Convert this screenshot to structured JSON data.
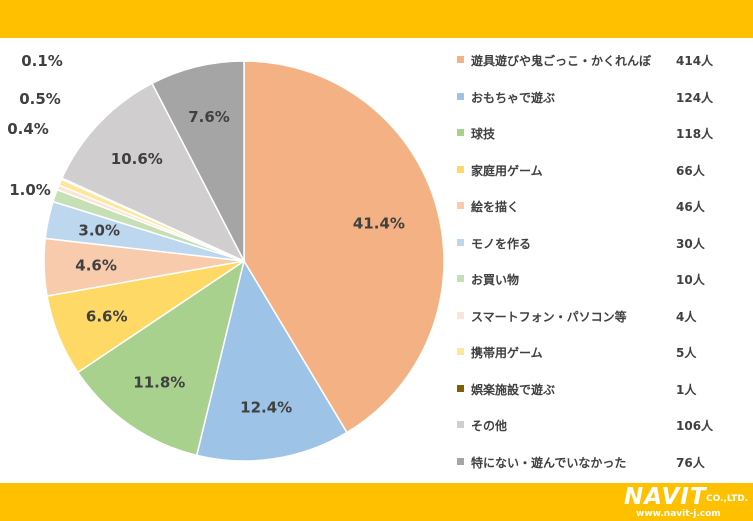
{
  "chart_data": {
    "type": "pie",
    "slices": [
      {
        "label": "遊具遊びや鬼ごっこ・かくれんぼ",
        "count": "414人",
        "value": 41.4,
        "pct_label": "41.4%",
        "color": "#F4B183"
      },
      {
        "label": "おもちゃで遊ぶ",
        "count": "124人",
        "value": 12.4,
        "pct_label": "12.4%",
        "color": "#9DC3E6"
      },
      {
        "label": "球技",
        "count": "118人",
        "value": 11.8,
        "pct_label": "11.8%",
        "color": "#A9D18E"
      },
      {
        "label": "家庭用ゲーム",
        "count": "66人",
        "value": 6.6,
        "pct_label": "6.6%",
        "color": "#FFD966"
      },
      {
        "label": "絵を描く",
        "count": "46人",
        "value": 4.6,
        "pct_label": "4.6%",
        "color": "#F8CBAD"
      },
      {
        "label": "モノを作る",
        "count": "30人",
        "value": 3.0,
        "pct_label": "3.0%",
        "color": "#BDD7EE"
      },
      {
        "label": "お買い物",
        "count": "10人",
        "value": 1.0,
        "pct_label": "1.0%",
        "color": "#C5E0B4"
      },
      {
        "label": "スマートフォン・パソコン等",
        "count": "4人",
        "value": 0.4,
        "pct_label": "0.4%",
        "color": "#FBE5D6"
      },
      {
        "label": "携帯用ゲーム",
        "count": "5人",
        "value": 0.5,
        "pct_label": "0.5%",
        "color": "#FFE699"
      },
      {
        "label": "娯楽施設で遊ぶ",
        "count": "1人",
        "value": 0.1,
        "pct_label": "0.1%",
        "color": "#7F6000"
      },
      {
        "label": "その他",
        "count": "106人",
        "value": 10.6,
        "pct_label": "10.6%",
        "color": "#D0CECE"
      },
      {
        "label": "特にない・遊んでいなかった",
        "count": "76人",
        "value": 7.6,
        "pct_label": "7.6%",
        "color": "#A5A5A5"
      }
    ]
  },
  "logo": {
    "brand": "NAVIT",
    "suffix": "CO.,LTD.",
    "url": "www.navit-j.com"
  }
}
